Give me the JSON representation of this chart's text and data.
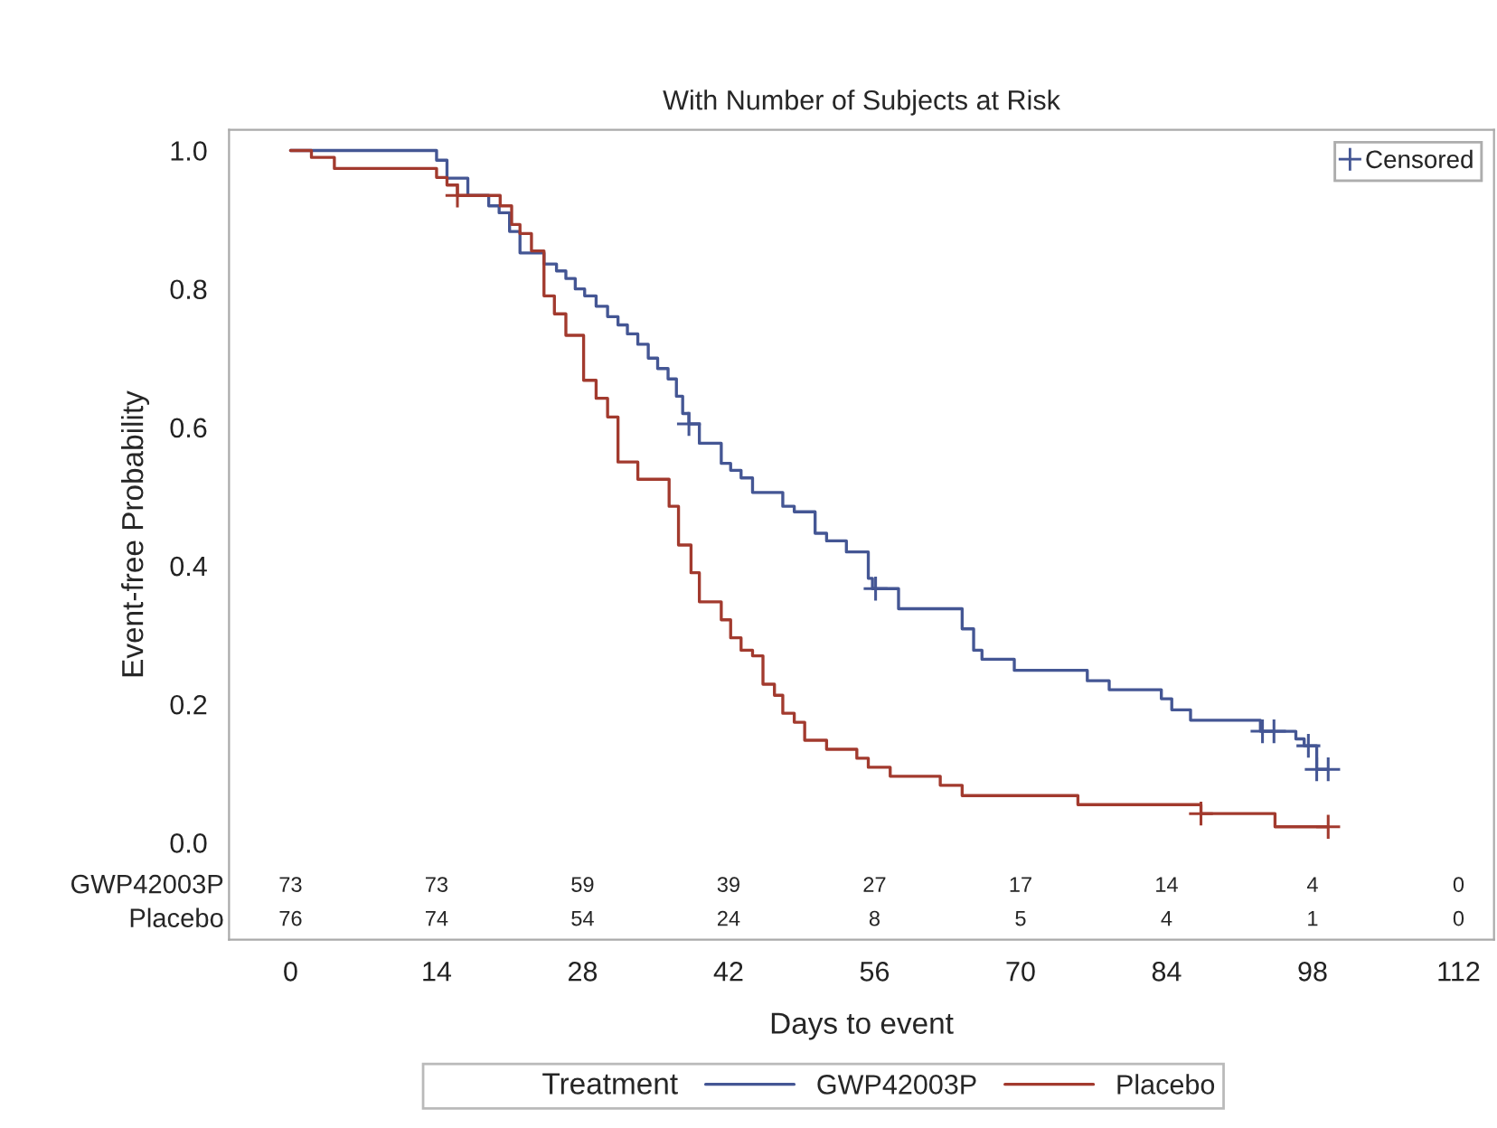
{
  "chart_data": {
    "type": "step",
    "title": "With Number of Subjects at Risk",
    "xlabel": "Days to event",
    "ylabel": "Event-free Probability",
    "legend_title": "Treatment",
    "legend": "bottom",
    "grid": false,
    "xlim": [
      -5.9,
      115.4
    ],
    "xticks": [
      0,
      14,
      28,
      42,
      56,
      70,
      84,
      98,
      112
    ],
    "ylim": [
      -0.14,
      1.03
    ],
    "yticks": [
      {
        "value": 0,
        "label": "0.0"
      },
      {
        "value": 0.2,
        "label": "0.2"
      },
      {
        "value": 0.4,
        "label": "0.4"
      },
      {
        "value": 0.6,
        "label": "0.6"
      },
      {
        "value": 0.8,
        "label": "0.8"
      },
      {
        "value": 1,
        "label": "1.0"
      }
    ],
    "series": [
      {
        "name": "GWP42003P",
        "color": "#445694",
        "marker": "none",
        "x": [
          0,
          14,
          15,
          17,
          19,
          20,
          21,
          22,
          24.3,
          25.5,
          26.4,
          27.3,
          28.2,
          29.3,
          30.4,
          31.4,
          32.3,
          33.3,
          34.3,
          35.2,
          36.2,
          37.0,
          37.6,
          38.2,
          39.2,
          41.3,
          42.2,
          43.2,
          44.3,
          47.2,
          48.3,
          50.3,
          51.4,
          53.3,
          55.4,
          55.8,
          58.3,
          64.4,
          65.5,
          66.3,
          69.4,
          76.4,
          78.5,
          83.5,
          84.5,
          86.3,
          93.0,
          96.4,
          97.2,
          98.4,
          99.5
        ],
        "values": [
          1.0,
          0.986,
          0.96,
          0.935,
          0.92,
          0.91,
          0.883,
          0.852,
          0.836,
          0.826,
          0.815,
          0.8,
          0.79,
          0.775,
          0.76,
          0.748,
          0.735,
          0.72,
          0.7,
          0.685,
          0.67,
          0.645,
          0.62,
          0.605,
          0.577,
          0.548,
          0.538,
          0.527,
          0.506,
          0.486,
          0.478,
          0.447,
          0.436,
          0.42,
          0.382,
          0.367,
          0.338,
          0.309,
          0.278,
          0.265,
          0.249,
          0.234,
          0.221,
          0.208,
          0.192,
          0.177,
          0.161,
          0.15,
          0.14,
          0.106,
          0.106
        ]
      },
      {
        "name": "Placebo",
        "color": "#a23a2e",
        "marker": "none",
        "x": [
          0,
          2,
          4.2,
          14,
          15,
          16,
          20.1,
          21.2,
          22,
          23.1,
          24.3,
          25.3,
          26.4,
          28.1,
          29.3,
          30.4,
          31.4,
          33.3,
          36.3,
          37.2,
          38.4,
          39.2,
          41.3,
          42.2,
          43.2,
          44.3,
          45.3,
          46.4,
          47.2,
          48.3,
          49.3,
          51.4,
          54.3,
          55.4,
          57.5,
          62.3,
          64.4,
          75.5,
          87.3,
          94.4,
          99.5
        ],
        "values": [
          1.0,
          0.99,
          0.974,
          0.961,
          0.95,
          0.935,
          0.92,
          0.893,
          0.88,
          0.855,
          0.79,
          0.764,
          0.733,
          0.668,
          0.642,
          0.615,
          0.55,
          0.525,
          0.486,
          0.43,
          0.39,
          0.348,
          0.322,
          0.296,
          0.278,
          0.27,
          0.229,
          0.213,
          0.187,
          0.174,
          0.148,
          0.135,
          0.122,
          0.109,
          0.096,
          0.083,
          0.068,
          0.055,
          0.042,
          0.023,
          0.023
        ]
      },
      {
        "name": "Censored",
        "type": "scatter",
        "color": "#445694",
        "marker": "cross",
        "x": [
          38.2,
          56.1,
          93.2,
          94.3,
          97.6,
          98.4,
          99.5
        ],
        "values": [
          0.605,
          0.367,
          0.161,
          0.161,
          0.14,
          0.106,
          0.106
        ]
      },
      {
        "type": "scatter",
        "color": "#a23a2e",
        "marker": "cross",
        "x": [
          16,
          87.3,
          99.5
        ],
        "values": [
          0.935,
          0.042,
          0.023
        ]
      }
    ],
    "annotations": [
      "GWP42003P",
      "73",
      "73",
      "59",
      "39",
      "27",
      "17",
      "14",
      "4",
      "0",
      "Placebo",
      "76",
      "74",
      "54",
      "24",
      "8",
      "5",
      "4",
      "1",
      "0"
    ]
  }
}
